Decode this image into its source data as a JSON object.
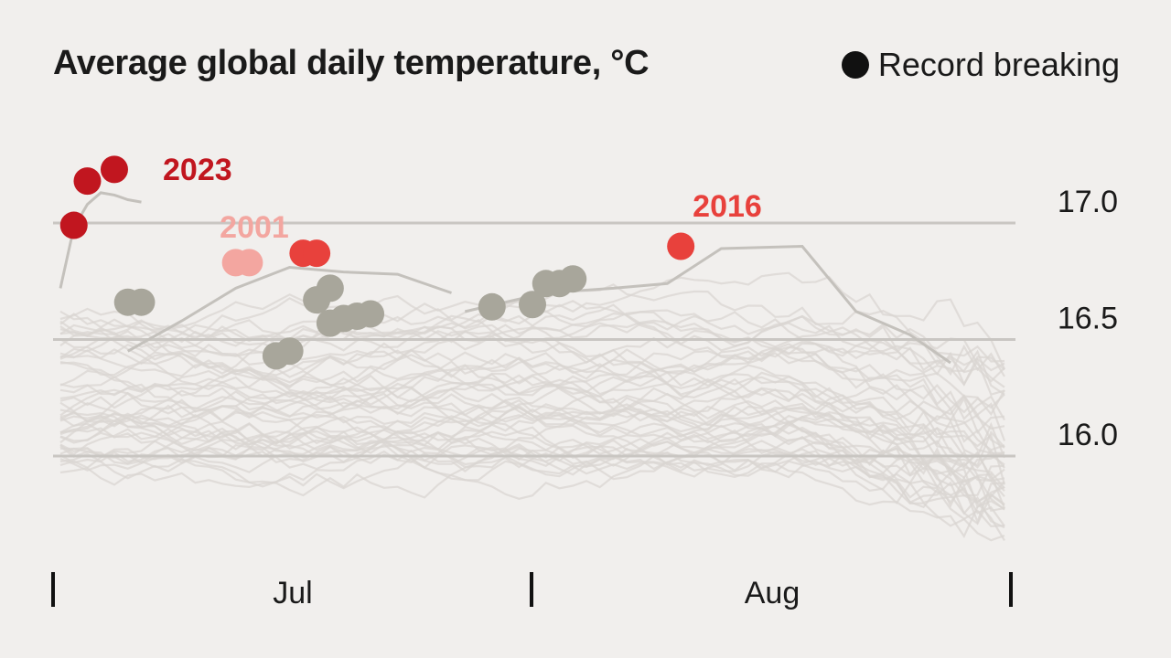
{
  "title": "Average global daily temperature, °C",
  "legend": {
    "label": "Record breaking",
    "color": "#111111"
  },
  "chart_data": {
    "type": "line",
    "title": "Average global daily temperature, °C",
    "xlabel": "",
    "ylabel": "",
    "x_tick_labels": [
      "Jul",
      "Aug"
    ],
    "y_ticks": [
      16.0,
      16.5,
      17.0
    ],
    "y_tick_labels": [
      "16.0",
      "16.5",
      "17.0"
    ],
    "ylim": [
      15.5,
      17.4
    ],
    "grid": true,
    "background_series_color": "#d9d6d2",
    "highlight": [
      {
        "name": "2023",
        "color": "#c1161f",
        "days": [
          0,
          1,
          2,
          3,
          4,
          5,
          6
        ],
        "values": [
          16.72,
          16.98,
          17.08,
          17.13,
          17.12,
          17.1,
          17.09
        ],
        "records": [
          [
            1,
            16.99
          ],
          [
            2,
            17.18
          ],
          [
            4,
            17.23
          ]
        ]
      },
      {
        "name": "2001",
        "color": "#f3a6a0",
        "days": [
          5,
          9,
          13,
          17,
          21,
          25,
          29
        ],
        "values": [
          16.45,
          16.58,
          16.72,
          16.81,
          16.79,
          16.78,
          16.7
        ],
        "records": [
          [
            13,
            16.83
          ],
          [
            14,
            16.83
          ]
        ]
      },
      {
        "name": "2016",
        "color": "#e8413c",
        "days": [
          30,
          36,
          41,
          45,
          49,
          55,
          59,
          63,
          66
        ],
        "values": [
          16.62,
          16.7,
          16.72,
          16.74,
          16.89,
          16.9,
          16.62,
          16.52,
          16.4
        ],
        "records": [
          [
            18,
            16.87
          ],
          [
            19,
            16.87
          ],
          [
            46,
            16.9
          ]
        ]
      }
    ],
    "other_records": [
      [
        5,
        16.66
      ],
      [
        6,
        16.66
      ],
      [
        16,
        16.43
      ],
      [
        17,
        16.45
      ],
      [
        19,
        16.67
      ],
      [
        20,
        16.72
      ],
      [
        20,
        16.57
      ],
      [
        21,
        16.59
      ],
      [
        22,
        16.6
      ],
      [
        23,
        16.61
      ],
      [
        32,
        16.64
      ],
      [
        35,
        16.65
      ],
      [
        36,
        16.74
      ],
      [
        37,
        16.74
      ],
      [
        38,
        16.76
      ]
    ],
    "background_series_count": 45
  }
}
